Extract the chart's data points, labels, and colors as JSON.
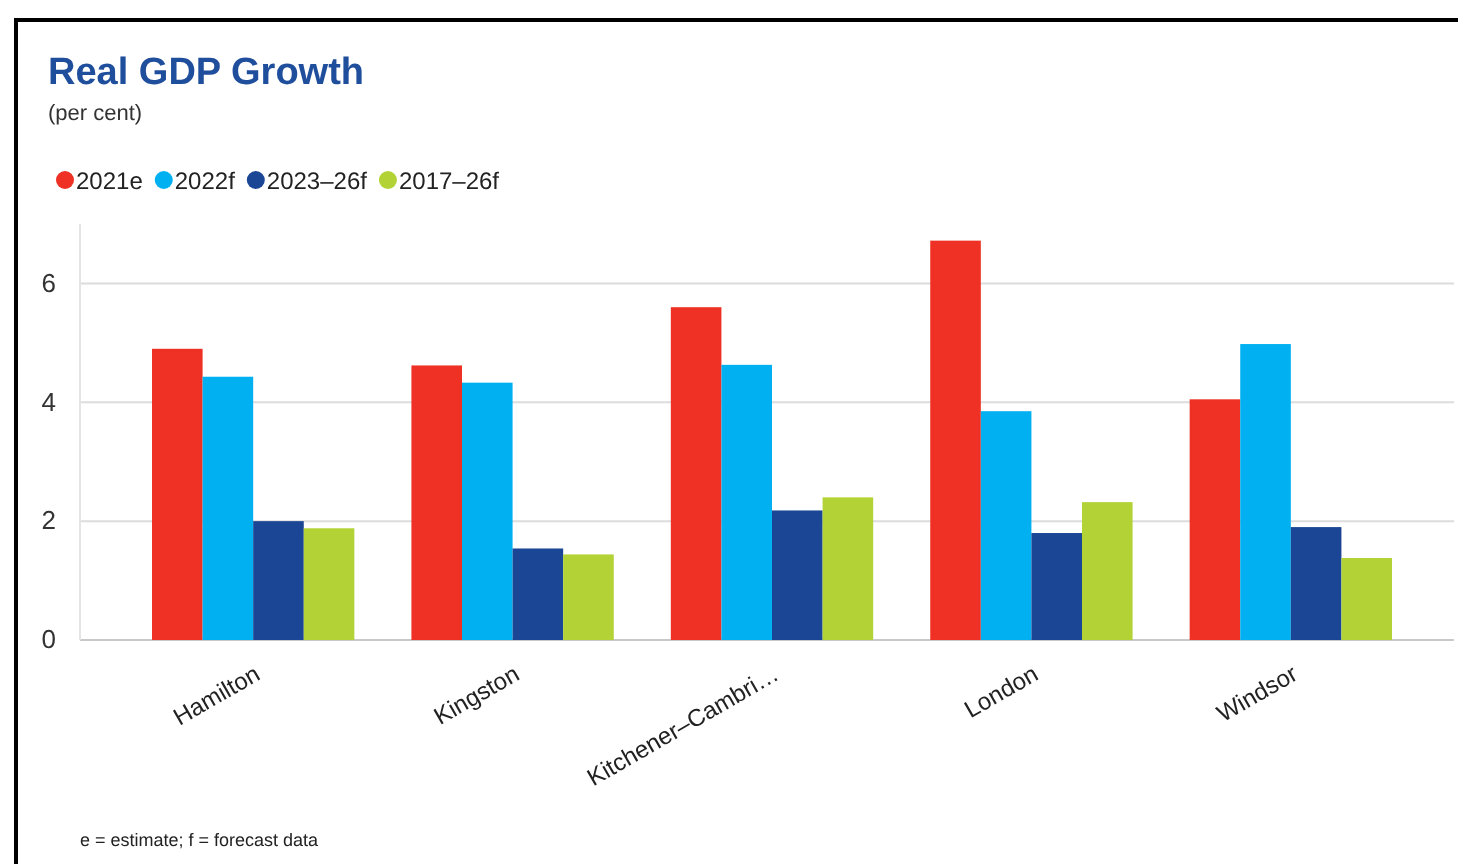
{
  "chart_data": {
    "type": "bar",
    "title": "Real GDP Growth",
    "subtitle": "(per cent)",
    "categories": [
      "Hamilton",
      "Kingston",
      "Kitchener–Cambri…",
      "London",
      "Windsor"
    ],
    "series": [
      {
        "name": "2021e",
        "color": "#ee3124",
        "values": [
          4.9,
          4.62,
          5.6,
          6.72,
          4.05
        ]
      },
      {
        "name": "2022f",
        "color": "#00b0f0",
        "values": [
          4.43,
          4.33,
          4.63,
          3.85,
          4.98
        ]
      },
      {
        "name": "2023–26f",
        "color": "#1b4696",
        "values": [
          2.0,
          1.54,
          2.18,
          1.8,
          1.9
        ]
      },
      {
        "name": "2017–26f",
        "color": "#b2d235",
        "values": [
          1.88,
          1.44,
          2.4,
          2.32,
          1.38
        ]
      }
    ],
    "ylim": [
      0,
      7
    ],
    "yticks": [
      0,
      2,
      4,
      6
    ],
    "grid": "y",
    "legend": "top left",
    "annotations": [
      "e = estimate; f = forecast data"
    ]
  }
}
